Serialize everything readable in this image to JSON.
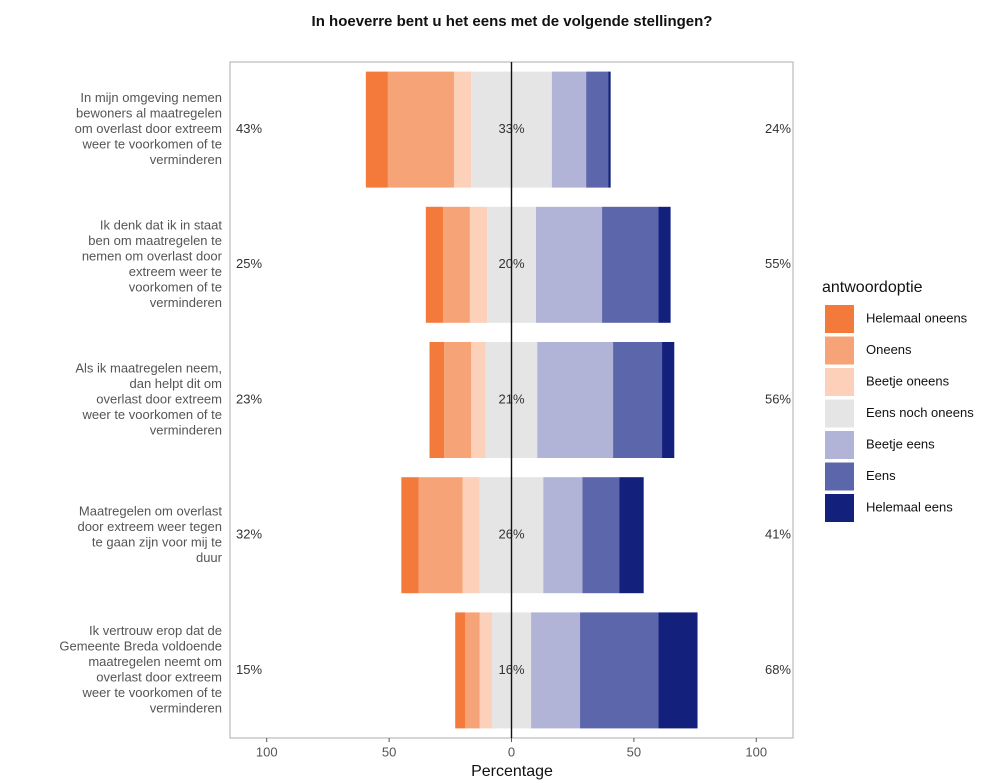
{
  "chart_data": {
    "type": "diverging_bar",
    "title": "In hoeverre bent u het eens met de volgende stellingen?",
    "x_label": "Percentage",
    "legend_title": "antwoordoptie",
    "legend": "right",
    "categories": [
      [
        "In mijn omgeving nemen",
        "bewoners al maatregelen",
        "om overlast door extreem",
        "weer te voorkomen of te",
        "verminderen"
      ],
      [
        "Ik denk dat ik in staat",
        "ben om maatregelen te",
        "nemen om overlast door",
        "extreem weer te",
        "voorkomen of te",
        "verminderen"
      ],
      [
        "Als ik maatregelen neem,",
        "dan helpt dit om",
        "overlast door extreem",
        "weer te voorkomen of te",
        "verminderen"
      ],
      [
        "Maatregelen om overlast",
        "door extreem weer tegen",
        "te gaan zijn voor mij te",
        "duur"
      ],
      [
        "Ik vertrouw erop dat de",
        "Gemeente Breda voldoende",
        "maatregelen neemt om",
        "overlast door extreem",
        "weer te voorkomen of te",
        "verminderen"
      ]
    ],
    "series": [
      {
        "name": "Helemaal oneens",
        "color": "#f47a3b",
        "side": "left",
        "values": [
          9,
          7,
          6,
          7,
          4
        ]
      },
      {
        "name": "Oneens",
        "color": "#f6a477",
        "side": "left",
        "values": [
          27,
          11,
          11,
          18,
          6
        ]
      },
      {
        "name": "Beetje oneens",
        "color": "#fcd0b9",
        "side": "left",
        "values": [
          7,
          7,
          6,
          7,
          5
        ]
      },
      {
        "name": "Eens noch oneens",
        "color": "#e5e5e5",
        "side": "center",
        "values": [
          33,
          20,
          21,
          26,
          16
        ]
      },
      {
        "name": "Beetje eens",
        "color": "#b1b3d7",
        "side": "right",
        "values": [
          14,
          27,
          31,
          16,
          20
        ]
      },
      {
        "name": "Eens",
        "color": "#5c67ab",
        "side": "right",
        "values": [
          9,
          23,
          20,
          15,
          32
        ]
      },
      {
        "name": "Helemaal eens",
        "color": "#13217d",
        "side": "right",
        "values": [
          1,
          5,
          5,
          10,
          16
        ]
      }
    ],
    "left_labels": [
      "43%",
      "25%",
      "23%",
      "32%",
      "15%"
    ],
    "center_labels": [
      "33%",
      "20%",
      "21%",
      "26%",
      "16%"
    ],
    "right_labels": [
      "24%",
      "55%",
      "56%",
      "41%",
      "68%"
    ],
    "xlim": [
      -115,
      115
    ],
    "xticks": [
      {
        "value": -100,
        "label": "100"
      },
      {
        "value": -50,
        "label": "50"
      },
      0,
      50,
      100
    ]
  }
}
